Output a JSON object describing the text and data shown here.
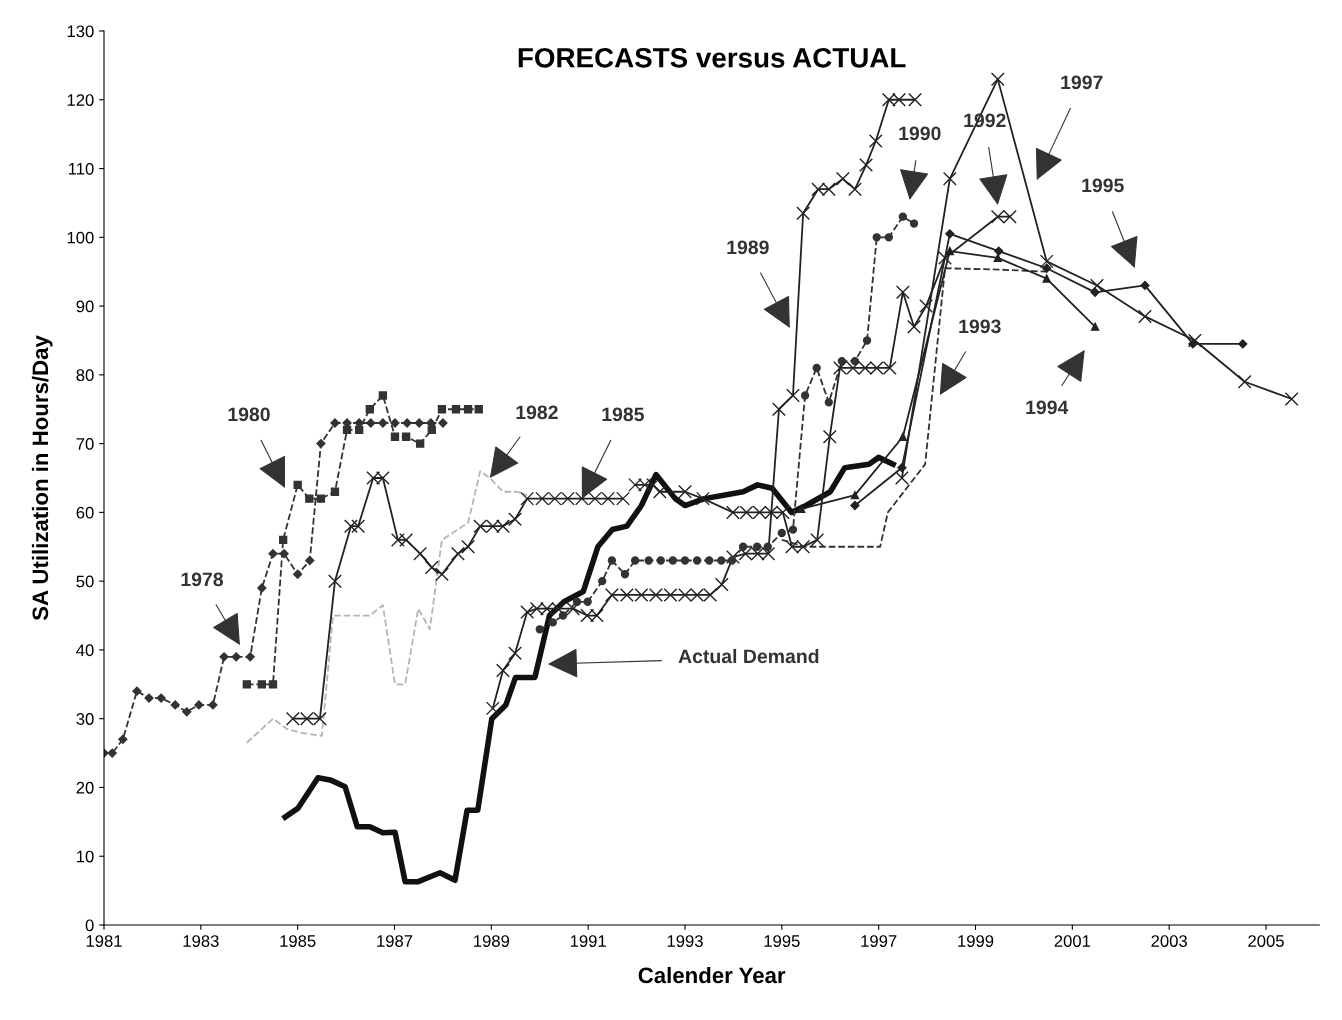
{
  "chart_data": {
    "type": "line",
    "title": "FORECASTS versus ACTUAL",
    "xlabel": "Calender Year",
    "ylabel": "SA Utilization in Hours/Day",
    "xlim": [
      1981,
      2006.1
    ],
    "xticks": [
      1981,
      1983,
      1985,
      1987,
      1989,
      1991,
      1993,
      1995,
      1997,
      1999,
      2001,
      2003,
      2005
    ],
    "ylim": [
      0,
      130
    ],
    "yticks": [
      0,
      10,
      20,
      30,
      40,
      50,
      60,
      70,
      80,
      90,
      100,
      110,
      120,
      130
    ],
    "grid": false,
    "series": [
      {
        "color": "#333333",
        "marker": "diamond",
        "line_style": "dashed",
        "x": [
          1981.0,
          1981.17,
          1981.39,
          1981.68,
          1981.93,
          1982.18,
          1982.47,
          1982.71,
          1982.96,
          1983.25,
          1983.48,
          1983.73,
          1984.02,
          1984.26,
          1984.49,
          1984.72,
          1985.0,
          1985.25,
          1985.48,
          1985.77,
          1986.02,
          1986.27,
          1986.51,
          1986.76,
          1987.01,
          1987.26,
          1987.51,
          1987.75,
          1988.0
        ],
        "values": [
          25,
          25,
          27,
          34,
          33,
          33,
          32,
          31,
          32,
          32,
          39,
          39,
          39,
          49,
          54,
          54,
          51,
          53,
          70,
          73,
          73,
          73,
          73,
          73,
          73,
          73,
          73,
          73,
          73
        ]
      },
      {
        "color": "#333333",
        "marker": "square",
        "line_style": "dashed",
        "x": [
          1983.95,
          1984.26,
          1984.49,
          1984.7,
          1985.0,
          1985.24,
          1985.48,
          1985.77,
          1986.02,
          1986.27,
          1986.49,
          1986.76,
          1987.01,
          1987.24,
          1987.53,
          1987.77,
          1987.98,
          1988.27,
          1988.52,
          1988.74
        ],
        "values": [
          35,
          35,
          35,
          56,
          64,
          62,
          62,
          63,
          72,
          72,
          75,
          77,
          71,
          71,
          70,
          72,
          75,
          75,
          75,
          75
        ]
      },
      {
        "color": "#b5b5b5",
        "marker": "none",
        "line_style": "dashed",
        "x": [
          1983.95,
          1984.49,
          1984.78,
          1985.05,
          1985.5,
          1985.73,
          1986.14,
          1986.49,
          1986.76,
          1987.01,
          1987.22,
          1987.49,
          1987.73,
          1987.98,
          1988.52,
          1988.77,
          1988.97,
          1989.24,
          1989.53,
          1989.74
        ],
        "values": [
          26.5,
          30,
          28.5,
          28,
          27.5,
          45,
          45,
          45,
          46.5,
          35,
          35,
          46,
          43,
          56,
          58.5,
          66,
          65,
          63,
          63,
          62.5
        ]
      },
      {
        "color": "#222222",
        "marker": "cross",
        "line_style": "solid",
        "x": [
          1984.9,
          1985.19,
          1985.46,
          1985.77,
          1986.1,
          1986.25,
          1986.56,
          1986.76,
          1987.07,
          1987.24,
          1987.53,
          1987.77,
          1987.98,
          1988.31,
          1988.52,
          1988.77,
          1989.03,
          1989.24,
          1989.49,
          1989.74,
          1990.05,
          1990.31,
          1990.58,
          1990.87,
          1991.14,
          1991.41,
          1991.72
        ],
        "values": [
          30,
          30,
          30,
          50,
          58,
          58,
          65,
          65,
          56,
          56,
          54,
          52,
          51,
          54,
          55,
          58,
          58,
          58,
          59,
          62,
          62,
          62,
          62,
          62,
          62,
          62,
          62
        ]
      },
      {
        "color": "#111111",
        "marker": "none",
        "line_style": "solid",
        "x": [
          1984.74,
          1985.01,
          1985.42,
          1985.67,
          1985.98,
          1986.23,
          1986.49,
          1986.76,
          1987.01,
          1987.22,
          1987.49,
          1987.94,
          1988.25,
          1988.5,
          1988.72,
          1989.01,
          1989.3,
          1989.5,
          1989.9,
          1990.2,
          1990.5,
          1990.9,
          1991.2,
          1991.5,
          1991.8,
          1992.1,
          1992.4,
          1992.8,
          1993.0,
          1993.4,
          1993.8,
          1994.2,
          1994.5,
          1994.8,
          1995.2,
          1995.5,
          1996.0,
          1996.3,
          1996.8,
          1997.0,
          1997.3
        ],
        "values": [
          15.7,
          17,
          21.4,
          21.1,
          20.1,
          14.3,
          14.3,
          13.4,
          13.5,
          6.3,
          6.3,
          7.6,
          6.5,
          16.7,
          16.7,
          30,
          32,
          36,
          36,
          45,
          47,
          48.5,
          55,
          57.5,
          58,
          61,
          65.5,
          62,
          61,
          62,
          62.5,
          63,
          64,
          63.5,
          60,
          61,
          63,
          66.5,
          67,
          68,
          67
        ]
      },
      {
        "color": "#222222",
        "marker": "cross",
        "line_style": "solid",
        "x": [
          1989.03,
          1989.24,
          1989.49,
          1989.74,
          1989.94,
          1990.15,
          1990.38,
          1990.69,
          1990.98,
          1991.18,
          1991.49,
          1991.8,
          1992.1,
          1992.4,
          1992.7,
          1993.0,
          1993.25,
          1993.52,
          1993.76,
          1993.99,
          1994.25,
          1994.5,
          1994.72,
          1994.94,
          1995.23,
          1995.44,
          1995.75,
          1995.97,
          1996.26,
          1996.51,
          1996.74,
          1996.94,
          1997.21,
          1997.42,
          1997.75
        ],
        "values": [
          31.5,
          37,
          39.5,
          45.5,
          46,
          46,
          46,
          46,
          45,
          45,
          48,
          48,
          48,
          48,
          48,
          48,
          48,
          48,
          49.5,
          53.5,
          54,
          54,
          54,
          75,
          77,
          103.5,
          107,
          107,
          108.5,
          107,
          110.5,
          114,
          120,
          120,
          120
        ]
      },
      {
        "color": "#333333",
        "marker": "circle",
        "line_style": "dashed",
        "x": [
          1990.0,
          1990.27,
          1990.48,
          1990.77,
          1990.99,
          1991.29,
          1991.49,
          1991.76,
          1991.97,
          1992.25,
          1992.5,
          1992.75,
          1993.0,
          1993.25,
          1993.5,
          1993.75,
          1993.97,
          1994.2,
          1994.49,
          1994.71,
          1995.0,
          1995.23,
          1995.48,
          1995.72,
          1995.97,
          1996.24,
          1996.51,
          1996.76,
          1996.96,
          1997.21,
          1997.5,
          1997.73
        ],
        "values": [
          43,
          44,
          45,
          47,
          47,
          50,
          53,
          51,
          53,
          53,
          53,
          53,
          53,
          53,
          53,
          53,
          53,
          55,
          55,
          55,
          57,
          57.5,
          77,
          81,
          76,
          82,
          82,
          85,
          100,
          100,
          103,
          102
        ]
      },
      {
        "color": "#222222",
        "marker": "cross",
        "line_style": "solid",
        "x": [
          1991.97,
          1992.17,
          1992.34,
          1992.48,
          1993.0,
          1993.37,
          1993.99,
          1994.27,
          1994.54,
          1994.78,
          1995.02,
          1995.21,
          1995.44,
          1995.73,
          1995.99,
          1996.2,
          1996.47,
          1996.72,
          1996.96,
          1997.23,
          1997.5,
          1997.73,
          1997.98,
          1998.37,
          1999.46,
          1999.71
        ],
        "values": [
          64,
          64,
          64,
          63,
          63,
          62,
          60,
          60,
          60,
          60,
          60,
          55,
          55,
          56,
          71,
          81,
          81,
          81,
          81,
          81,
          92,
          87,
          90,
          97,
          103,
          103
        ]
      },
      {
        "color": "#333333",
        "marker": "none",
        "line_style": "dashed",
        "x": [
          1995.0,
          1995.5,
          1997.03,
          1997.19,
          1997.96,
          1998.37,
          1999.5,
          2000.47
        ],
        "values": [
          56,
          55,
          55,
          60,
          67,
          95.5,
          95.3,
          95
        ]
      },
      {
        "color": "#222222",
        "marker": "triangle",
        "line_style": "solid",
        "x": [
          1995.4,
          1996.51,
          1997.5,
          1998.47,
          1999.46,
          2000.47,
          2001.47
        ],
        "values": [
          60.5,
          62.5,
          71,
          98,
          97,
          94,
          87
        ]
      },
      {
        "color": "#222222",
        "marker": "diamond",
        "line_style": "solid",
        "x": [
          1996.51,
          1997.48,
          1998.47,
          1999.48,
          2000.47,
          2001.47,
          2002.5,
          2003.49,
          2004.52
        ],
        "values": [
          61,
          66.5,
          100.5,
          98,
          95.5,
          92,
          93,
          84.5,
          84.5
        ]
      },
      {
        "color": "#222222",
        "marker": "cross",
        "line_style": "solid",
        "x": [
          1997.48,
          1998.47,
          1999.46,
          2000.47,
          2001.51,
          2002.5,
          2003.53,
          2004.56,
          2005.53
        ],
        "values": [
          65,
          108.5,
          123,
          96.5,
          93,
          88.5,
          85,
          79,
          76.5
        ]
      }
    ],
    "annotations": [
      "1978",
      "1980",
      {
        "text": "1982",
        "x": 1988.97,
        "y": 65
      },
      {
        "text": "1985",
        "x": 1990.87,
        "y": 62
      },
      "1989",
      "1990",
      "1992",
      "1997",
      "1995",
      "1993",
      "1994",
      "Actual Demand"
    ]
  }
}
